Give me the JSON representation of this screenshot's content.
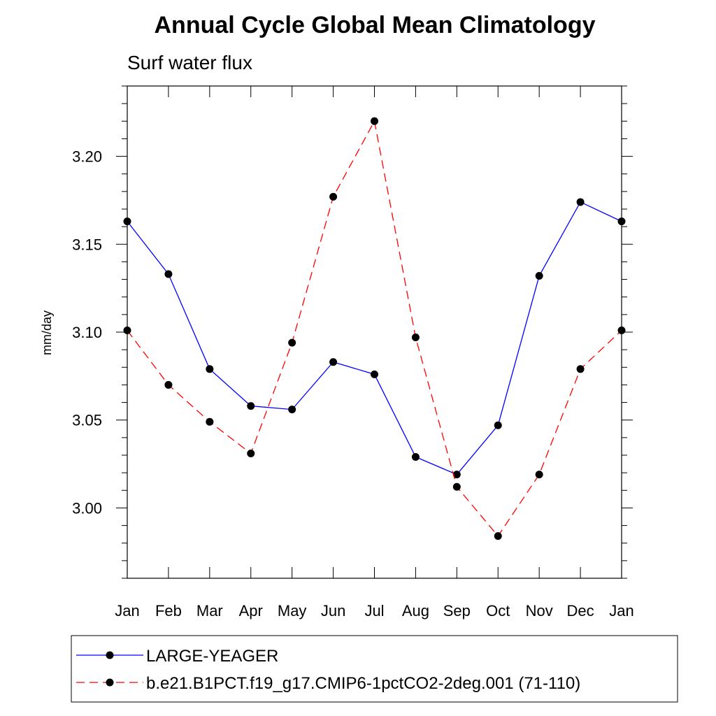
{
  "chart_data": {
    "type": "line",
    "title": "Annual Cycle Global Mean Climatology",
    "subtitle": "Surf water flux",
    "xlabel": "",
    "ylabel": "mm/day",
    "ylim": [
      2.96,
      3.24
    ],
    "yticks_major": [
      3.0,
      3.05,
      3.1,
      3.15,
      3.2
    ],
    "ytick_labels": [
      "3.00",
      "3.05",
      "3.10",
      "3.15",
      "3.20"
    ],
    "categories": [
      "Jan",
      "Feb",
      "Mar",
      "Apr",
      "May",
      "Jun",
      "Jul",
      "Aug",
      "Sep",
      "Oct",
      "Nov",
      "Dec",
      "Jan"
    ],
    "series": [
      {
        "name": "LARGE-YEAGER",
        "color": "#0000ff",
        "dash": "solid",
        "values": [
          3.163,
          3.133,
          3.079,
          3.058,
          3.056,
          3.083,
          3.076,
          3.029,
          3.019,
          3.047,
          3.132,
          3.174,
          3.163
        ]
      },
      {
        "name": "b.e21.B1PCT.f19_g17.CMIP6-1pctCO2-2deg.001 (71-110)",
        "color": "#ff0000",
        "dash": "dashed",
        "values": [
          3.101,
          3.07,
          3.049,
          3.031,
          3.094,
          3.177,
          3.22,
          3.097,
          3.012,
          2.984,
          3.019,
          3.079,
          3.101
        ]
      }
    ],
    "legend_position": "bottom",
    "grid": false
  }
}
